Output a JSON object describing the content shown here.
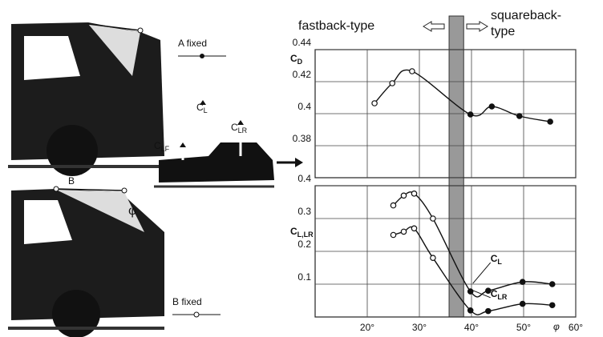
{
  "figure": {
    "diagram_labels": {
      "a_fixed": "A fixed",
      "b_fixed": "B fixed",
      "b": "B",
      "phi": "φ"
    },
    "car_labels": {
      "cl": {
        "symbol": "C",
        "sub": "L"
      },
      "clf": {
        "symbol": "C",
        "sub": "LF"
      },
      "clr": {
        "symbol": "C",
        "sub": "LR"
      }
    },
    "regions": {
      "left": "fastback-type",
      "right_1": "squareback-",
      "right_2": "type"
    }
  },
  "chart_data": [
    {
      "type": "line",
      "ylabel": {
        "symbol": "C",
        "sub": "D"
      },
      "xlim": [
        10,
        60
      ],
      "xticks": [
        20,
        30,
        40,
        50,
        60
      ],
      "show_xtick_labels": false,
      "ylim": [
        0.36,
        0.44
      ],
      "yticks": [
        0.44,
        0.42,
        0.4,
        0.38
      ],
      "shaded_range": [
        35.7,
        38.5
      ],
      "grid": true,
      "series": [
        {
          "color": "#111",
          "x": [
            21.4,
            24.8,
            28.6,
            39.8,
            43.9,
            49.2,
            55.1
          ],
          "values": [
            0.4065,
            0.419,
            0.4265,
            0.3995,
            0.4045,
            0.3985,
            0.395
          ],
          "markers": [
            "open",
            "open",
            "open",
            "filled",
            "filled",
            "filled",
            "filled"
          ]
        }
      ]
    },
    {
      "type": "line",
      "ylabel": {
        "symbol": "C",
        "sub": "L,LR"
      },
      "xlabel": "φ",
      "xlim": [
        10,
        60
      ],
      "xticks": [
        {
          "value": 20,
          "label": "20°"
        },
        {
          "value": 30,
          "label": "30°"
        },
        {
          "value": 40,
          "label": "40°"
        },
        {
          "value": 50,
          "label": "50°"
        },
        {
          "value": 60,
          "label": "60°"
        }
      ],
      "show_xtick_labels": true,
      "ylim": [
        0,
        0.4
      ],
      "yticks": [
        0.4,
        0.3,
        0.2,
        0.1
      ],
      "shaded_range": [
        35.7,
        38.5
      ],
      "grid": true,
      "series": [
        {
          "name": {
            "symbol": "C",
            "sub": "L"
          },
          "color": "#111",
          "x": [
            25,
            27,
            29,
            32.6,
            39.8,
            43.2,
            49.8,
            55.5
          ],
          "values": [
            0.34,
            0.37,
            0.376,
            0.3,
            0.078,
            0.08,
            0.107,
            0.1
          ],
          "markers": [
            "open",
            "open",
            "open",
            "open",
            "filled",
            "filled",
            "filled",
            "filled"
          ]
        },
        {
          "name": {
            "symbol": "C",
            "sub": "LR"
          },
          "color": "#111",
          "x": [
            25,
            27,
            29,
            32.6,
            39.8,
            43.2,
            49.8,
            55.5
          ],
          "values": [
            0.25,
            0.26,
            0.27,
            0.18,
            0.02,
            0.018,
            0.04,
            0.036
          ],
          "markers": [
            "open",
            "open",
            "open",
            "open",
            "filled",
            "filled",
            "filled",
            "filled"
          ]
        }
      ]
    }
  ]
}
